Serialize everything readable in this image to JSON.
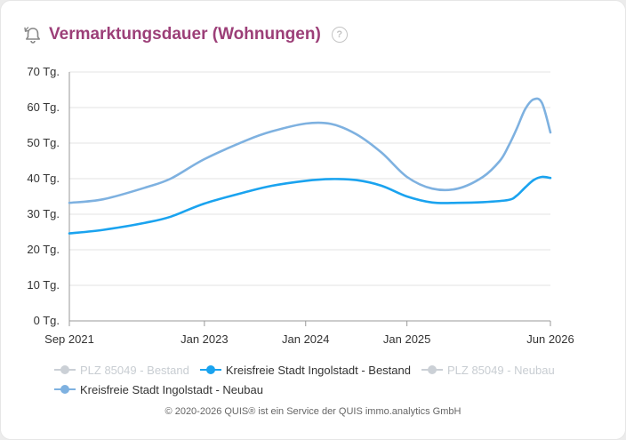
{
  "header": {
    "title": "Vermarktungsdauer (Wohnungen)",
    "help_glyph": "?",
    "icon": "bell-history-icon"
  },
  "colors": {
    "title": "#9c3f78",
    "bestand_line": "#1aa3ef",
    "neubau_line": "#7eb1e0",
    "inactive": "#cbd0d6",
    "grid": "#e3e3e3"
  },
  "chart_data": {
    "type": "line",
    "title": "Vermarktungsdauer (Wohnungen)",
    "xlabel": "",
    "ylabel": "",
    "x_range": [
      "2021-09",
      "2026-06"
    ],
    "ylim": [
      0,
      70
    ],
    "y_ticks": [
      0,
      10,
      20,
      30,
      40,
      50,
      60,
      70
    ],
    "y_tick_labels": [
      "0 Tg.",
      "10 Tg.",
      "20 Tg.",
      "30 Tg.",
      "40 Tg.",
      "50 Tg.",
      "60 Tg.",
      "70 Tg."
    ],
    "x_ticks": [
      {
        "date": "2021-09",
        "label": "Sep 2021"
      },
      {
        "date": "2023-01",
        "label": "Jan 2023"
      },
      {
        "date": "2024-01",
        "label": "Jan 2024"
      },
      {
        "date": "2025-01",
        "label": "Jan 2025"
      },
      {
        "date": "2026-06",
        "label": "Jun 2026"
      }
    ],
    "grid": true,
    "legend_position": "bottom",
    "series": [
      {
        "name": "PLZ 85049 - Bestand",
        "visible": false,
        "color": "#cbd0d6",
        "points": []
      },
      {
        "name": "Kreisfreie Stadt Ingolstadt - Bestand",
        "visible": true,
        "color": "#1aa3ef",
        "points": [
          [
            "2021-09",
            24.6
          ],
          [
            "2022-01",
            25.6
          ],
          [
            "2022-06",
            27.6
          ],
          [
            "2022-09",
            29.3
          ],
          [
            "2023-01",
            33.0
          ],
          [
            "2023-06",
            36.3
          ],
          [
            "2023-09",
            38.0
          ],
          [
            "2024-01",
            39.4
          ],
          [
            "2024-04",
            39.9
          ],
          [
            "2024-07",
            39.6
          ],
          [
            "2024-10",
            38.0
          ],
          [
            "2025-01",
            35.0
          ],
          [
            "2025-04",
            33.3
          ],
          [
            "2025-07",
            33.2
          ],
          [
            "2025-10",
            33.4
          ],
          [
            "2026-01",
            34.0
          ],
          [
            "2026-02",
            35.2
          ],
          [
            "2026-03",
            37.5
          ],
          [
            "2026-04",
            39.6
          ],
          [
            "2026-05",
            40.5
          ],
          [
            "2026-06",
            40.2
          ]
        ]
      },
      {
        "name": "PLZ 85049 - Neubau",
        "visible": false,
        "color": "#cbd0d6",
        "points": []
      },
      {
        "name": "Kreisfreie Stadt Ingolstadt - Neubau",
        "visible": true,
        "color": "#7eb1e0",
        "points": [
          [
            "2021-09",
            33.2
          ],
          [
            "2022-01",
            34.2
          ],
          [
            "2022-06",
            37.5
          ],
          [
            "2022-09",
            40.0
          ],
          [
            "2023-01",
            45.5
          ],
          [
            "2023-06",
            50.8
          ],
          [
            "2023-09",
            53.3
          ],
          [
            "2024-01",
            55.5
          ],
          [
            "2024-04",
            55.4
          ],
          [
            "2024-07",
            52.5
          ],
          [
            "2024-10",
            47.3
          ],
          [
            "2025-01",
            40.5
          ],
          [
            "2025-04",
            37.2
          ],
          [
            "2025-07",
            37.2
          ],
          [
            "2025-10",
            40.5
          ],
          [
            "2025-12",
            45.0
          ],
          [
            "2026-01",
            49.0
          ],
          [
            "2026-02",
            54.0
          ],
          [
            "2026-03",
            59.5
          ],
          [
            "2026-04",
            62.3
          ],
          [
            "2026-05",
            61.3
          ],
          [
            "2026-06",
            53.0
          ]
        ]
      }
    ]
  },
  "legend": [
    {
      "label": "PLZ 85049 - Bestand",
      "active": false
    },
    {
      "label": "Kreisfreie Stadt Ingolstadt - Bestand",
      "active": true
    },
    {
      "label": "PLZ 85049 - Neubau",
      "active": false
    },
    {
      "label": "Kreisfreie Stadt Ingolstadt - Neubau",
      "active": true
    }
  ],
  "footer": {
    "copyright": "© 2020-2026 QUIS® ist ein Service der QUIS immo.analytics GmbH"
  }
}
